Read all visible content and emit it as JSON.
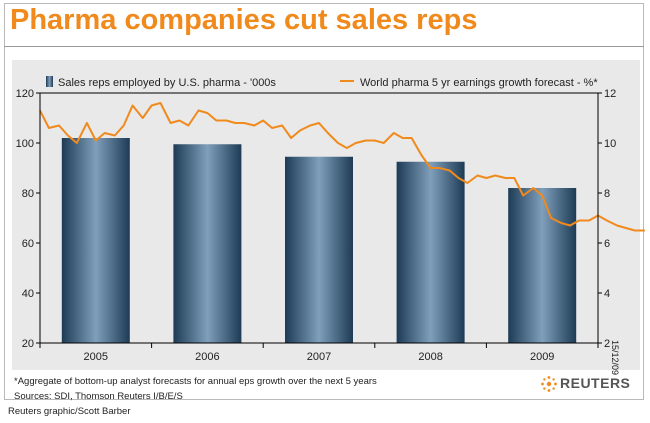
{
  "header": {
    "title": "Pharma companies cut sales reps"
  },
  "chart_data": {
    "type": "bar+line",
    "categories": [
      "2005",
      "2006",
      "2007",
      "2008",
      "2009"
    ],
    "series": [
      {
        "name": "Sales reps employed by U.S. pharma - '000s",
        "type": "bar",
        "axis": "left",
        "values": [
          102,
          99.5,
          94.5,
          92.5,
          82
        ]
      },
      {
        "name": "World pharma 5 yr earnings growth forecast - %*",
        "type": "line",
        "axis": "right",
        "color": "#f08a1c",
        "x": [
          2004.5,
          2004.58,
          2004.67,
          2004.75,
          2004.83,
          2004.92,
          2005.0,
          2005.08,
          2005.17,
          2005.25,
          2005.33,
          2005.42,
          2005.5,
          2005.58,
          2005.67,
          2005.75,
          2005.83,
          2005.92,
          2006.0,
          2006.08,
          2006.17,
          2006.25,
          2006.33,
          2006.42,
          2006.5,
          2006.58,
          2006.67,
          2006.75,
          2006.83,
          2006.92,
          2007.0,
          2007.08,
          2007.17,
          2007.25,
          2007.33,
          2007.42,
          2007.5,
          2007.58,
          2007.67,
          2007.75,
          2007.83,
          2007.92,
          2008.0,
          2008.08,
          2008.17,
          2008.25,
          2008.33,
          2008.42,
          2008.5,
          2008.58,
          2008.67,
          2008.75,
          2008.83,
          2008.92,
          2009.0,
          2009.08,
          2009.17,
          2009.25,
          2009.33,
          2009.42,
          2009.5,
          2009.58,
          2009.67,
          2009.75,
          2009.83,
          2009.92
        ],
        "values": [
          11.3,
          10.6,
          10.7,
          10.3,
          10.0,
          10.8,
          10.1,
          10.4,
          10.3,
          10.7,
          11.5,
          11.0,
          11.5,
          11.6,
          10.8,
          10.9,
          10.7,
          11.3,
          11.2,
          10.9,
          10.9,
          10.8,
          10.8,
          10.7,
          10.9,
          10.6,
          10.7,
          10.2,
          10.5,
          10.7,
          10.8,
          10.4,
          10.0,
          9.8,
          10.0,
          10.1,
          10.1,
          10.0,
          10.4,
          10.2,
          10.2,
          9.5,
          9.0,
          9.0,
          8.9,
          8.6,
          8.4,
          8.7,
          8.6,
          8.7,
          8.6,
          8.6,
          7.9,
          8.2,
          7.9,
          7.0,
          6.8,
          6.7,
          6.9,
          6.9,
          7.1,
          6.9,
          6.7,
          6.6,
          6.5,
          6.5
        ]
      }
    ],
    "y_left": {
      "min": 20,
      "max": 120,
      "ticks": [
        20,
        40,
        60,
        80,
        100,
        120
      ]
    },
    "y_right": {
      "min": 2,
      "max": 12,
      "ticks": [
        2,
        4,
        6,
        8,
        10,
        12
      ]
    },
    "legend": "top",
    "grid": false
  },
  "footer": {
    "note": "*Aggregate of bottom-up analyst forecasts for annual eps growth over the next 5 years",
    "sources": "Sources: SDI, Thomson Reuters I/B/E/S",
    "credit": "Reuters graphic/Scott Barber",
    "date": "15/12/09",
    "brand": "REUTERS"
  },
  "colors": {
    "accent": "#f08a1c",
    "bar": "#2c4f6c"
  }
}
